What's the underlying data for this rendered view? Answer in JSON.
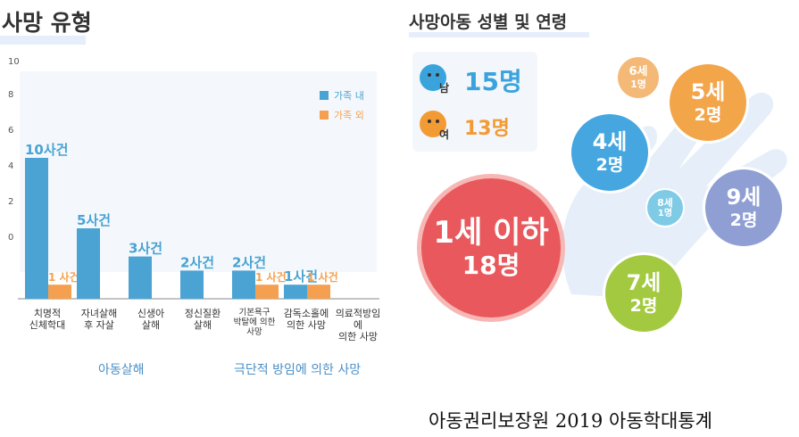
{
  "left_title": "사망 유형",
  "right_title": "사망아동 성별 및 연령",
  "chart_data": {
    "type": "bar",
    "categories": [
      "치명적\n신체학대",
      "자녀살해\n후 자살",
      "신생아\n살해",
      "정신질환\n살해",
      "기본욕구\n박탈에 의한\n사망",
      "감독소홀에\n의한 사망",
      "의료적방임에\n의한 사망"
    ],
    "series": [
      {
        "name": "가족 내",
        "color": "#4aa3d3",
        "values": [
          10,
          5,
          3,
          2,
          2,
          1,
          0
        ]
      },
      {
        "name": "가족 외",
        "color": "#f5a051",
        "values": [
          1,
          0,
          0,
          0,
          1,
          1,
          0
        ]
      }
    ],
    "value_labels": {
      "inside": [
        "10사건",
        "5사건",
        "3사건",
        "2사건",
        "2사건",
        "1사건",
        ""
      ],
      "outside": [
        "1 사건",
        "",
        "",
        "",
        "1 사건",
        "1 사건",
        ""
      ]
    },
    "yticks": [
      "10",
      "8",
      "6",
      "4",
      "2",
      "0"
    ],
    "groups": [
      "아동살해",
      "극단적 방임에 의한 사망"
    ],
    "legend": "top-right"
  },
  "gender": {
    "male": {
      "label": "남",
      "count": "15명",
      "color": "#3aa3dc"
    },
    "female": {
      "label": "여",
      "count": "13명",
      "color": "#f29b35"
    }
  },
  "ages": [
    {
      "age": "1세 이하",
      "count": "18명",
      "color": "#e8585c"
    },
    {
      "age": "4세",
      "count": "2명",
      "color": "#45a6e0"
    },
    {
      "age": "5세",
      "count": "2명",
      "color": "#f3a54a"
    },
    {
      "age": "6세",
      "count": "1명",
      "color": "#f4b877"
    },
    {
      "age": "7세",
      "count": "2명",
      "color": "#a3c940"
    },
    {
      "age": "8세",
      "count": "1명",
      "color": "#7fcbe6"
    },
    {
      "age": "9세",
      "count": "2명",
      "color": "#8f9fd4"
    }
  ],
  "source": "아동권리보장원 2019 아동학대통계"
}
